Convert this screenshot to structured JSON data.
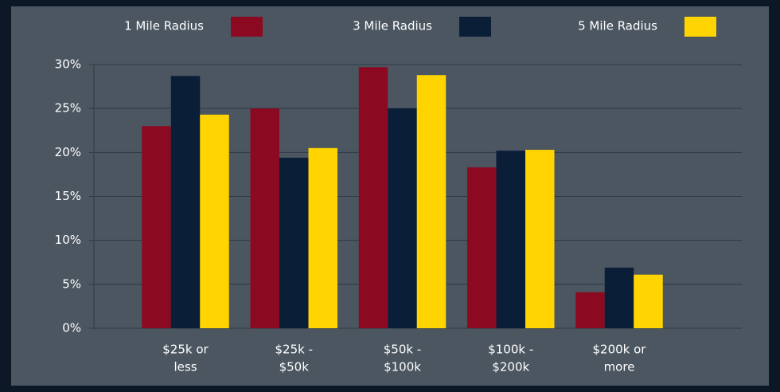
{
  "chart_data": {
    "type": "bar",
    "categories": [
      [
        "$25k or",
        "less"
      ],
      [
        "$25k -",
        "$50k"
      ],
      [
        "$50k -",
        "$100k"
      ],
      [
        "$100k -",
        "$200k"
      ],
      [
        "$200k or",
        "more"
      ]
    ],
    "series": [
      {
        "name": "1 Mile Radius",
        "color": "#8b0a22",
        "values": [
          23,
          25,
          29.7,
          18.3,
          4.1
        ]
      },
      {
        "name": "3 Mile Radius",
        "color": "#0b1e38",
        "values": [
          28.7,
          19.4,
          25,
          20.2,
          6.9
        ]
      },
      {
        "name": "5 Mile Radius",
        "color": "#ffd400",
        "values": [
          24.3,
          20.5,
          28.8,
          20.3,
          6.1
        ]
      }
    ],
    "ylim": [
      0,
      30
    ],
    "yticks": [
      {
        "value": 0,
        "label": "0%"
      },
      {
        "value": 5,
        "label": "5%"
      },
      {
        "value": 10,
        "label": "10%"
      },
      {
        "value": 15,
        "label": "15%"
      },
      {
        "value": 20,
        "label": "20%"
      },
      {
        "value": 25,
        "label": "25%"
      },
      {
        "value": 30,
        "label": "30%"
      }
    ],
    "grid": true,
    "legend": "top"
  }
}
